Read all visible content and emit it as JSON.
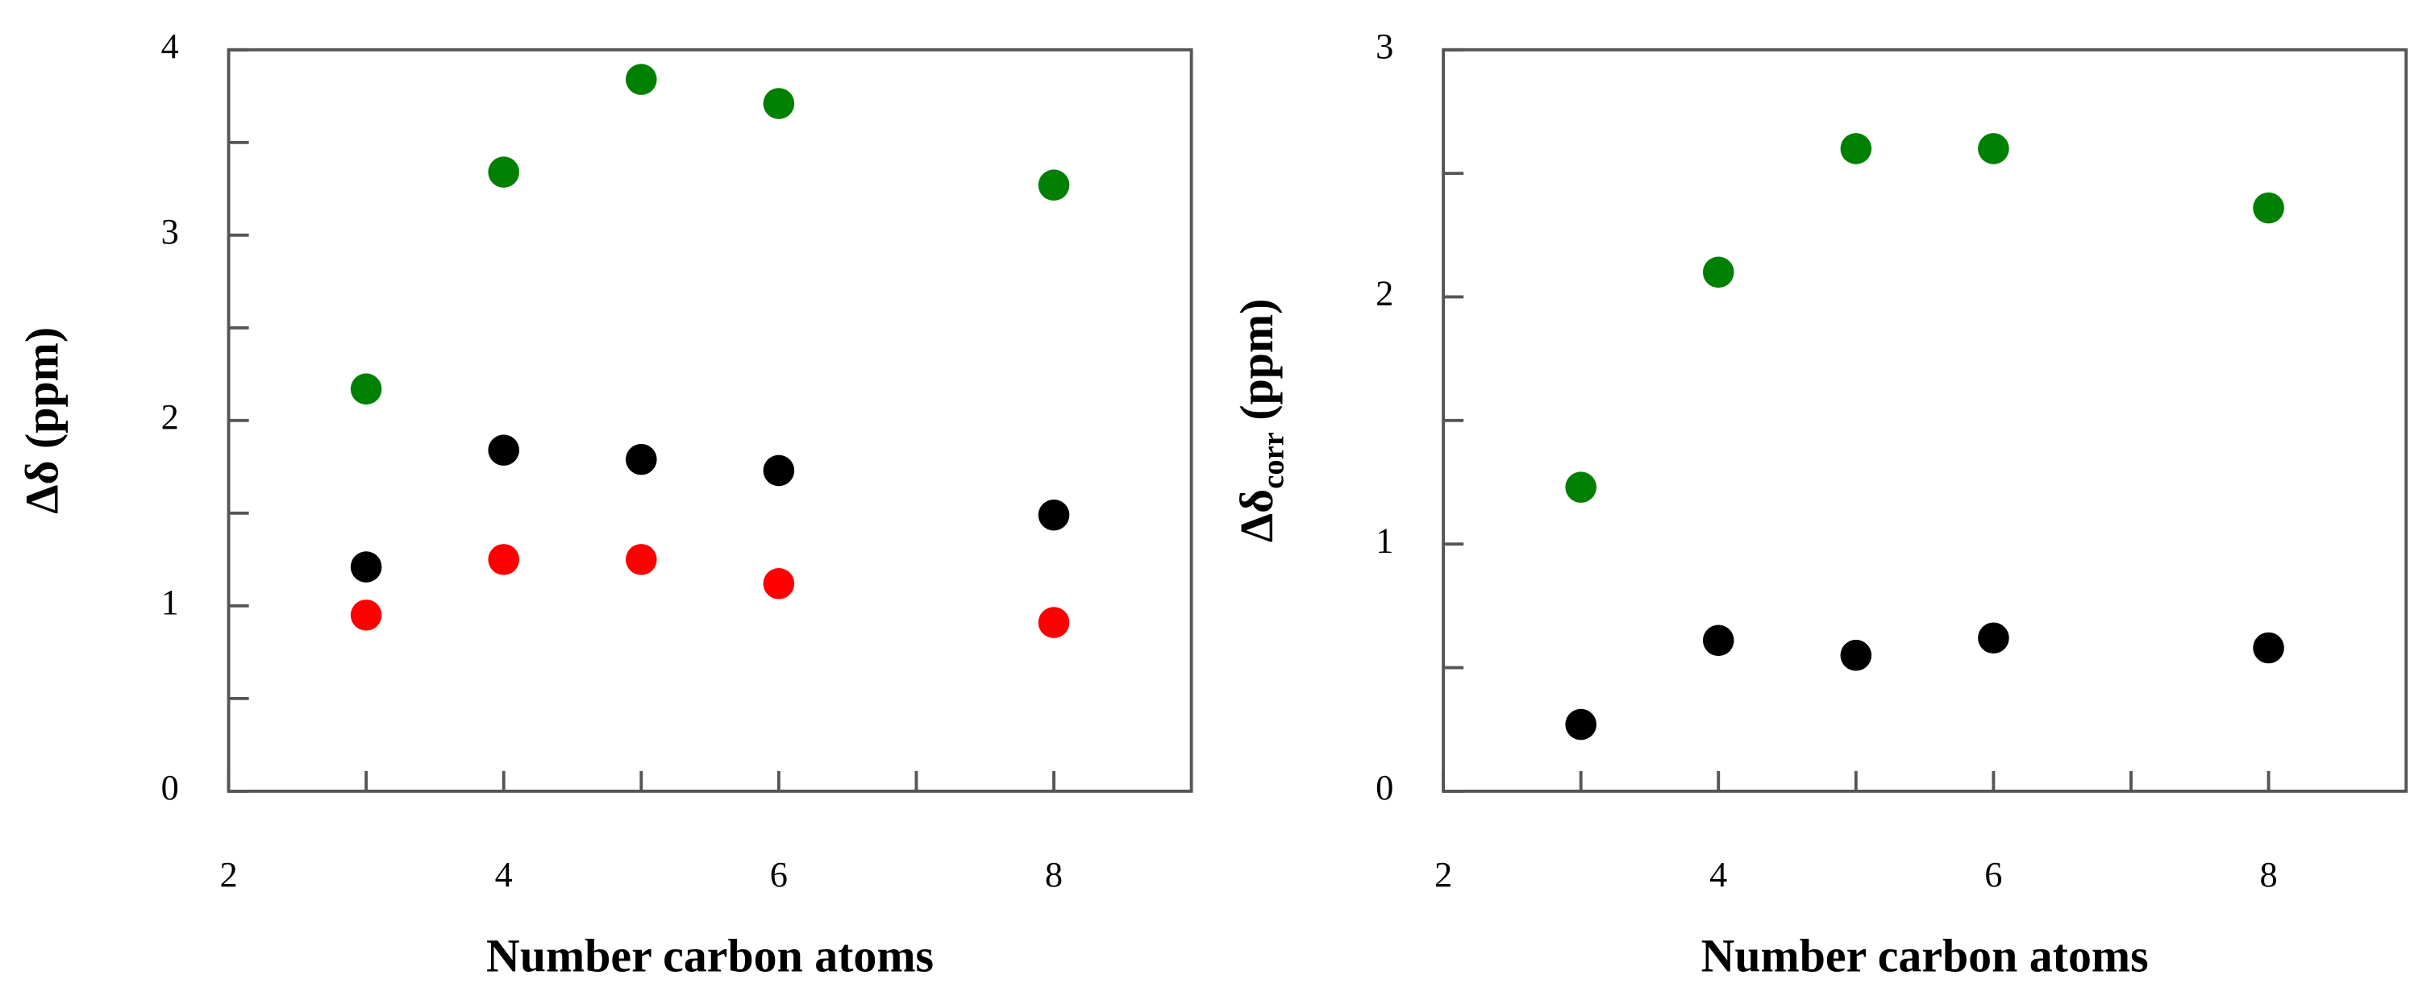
{
  "chart_data": [
    {
      "type": "scatter",
      "x": [
        3,
        4,
        5,
        6,
        8
      ],
      "series": [
        {
          "color": "#008000",
          "values": [
            2.17,
            3.34,
            3.84,
            3.71,
            3.27
          ]
        },
        {
          "color": "#000000",
          "values": [
            1.21,
            1.84,
            1.79,
            1.73,
            1.49
          ]
        },
        {
          "color": "#ff0000",
          "values": [
            0.95,
            1.25,
            1.25,
            1.12,
            0.91
          ]
        }
      ],
      "xlim": [
        2,
        9
      ],
      "xticks": [
        2,
        4,
        6,
        8
      ],
      "x_minor_ticks": [
        3,
        5,
        7
      ],
      "ylim": [
        0,
        4
      ],
      "yticks": [
        0,
        1,
        2,
        3,
        4
      ],
      "y_minor_ticks": [
        0.5,
        1.5,
        2.5,
        3.5
      ],
      "xlabel": "Number carbon atoms",
      "ylabel": {
        "main": "Δδ (ppm)"
      }
    },
    {
      "type": "scatter",
      "x": [
        3,
        4,
        5,
        6,
        8
      ],
      "series": [
        {
          "color": "#008000",
          "values": [
            1.23,
            2.1,
            2.6,
            2.6,
            2.36
          ]
        },
        {
          "color": "#000000",
          "values": [
            0.27,
            0.61,
            0.55,
            0.62,
            0.58
          ]
        }
      ],
      "xlim": [
        2,
        9
      ],
      "xticks": [
        2,
        4,
        6,
        8
      ],
      "x_minor_ticks": [
        3,
        5,
        7
      ],
      "ylim": [
        0,
        3
      ],
      "yticks": [
        0,
        1,
        2,
        3
      ],
      "y_minor_ticks": [
        0.5,
        1.5,
        2.5
      ],
      "xlabel": "Number carbon atoms",
      "ylabel": {
        "main": "Δδ",
        "sub": "corr",
        "rest": " (ppm)"
      }
    }
  ]
}
